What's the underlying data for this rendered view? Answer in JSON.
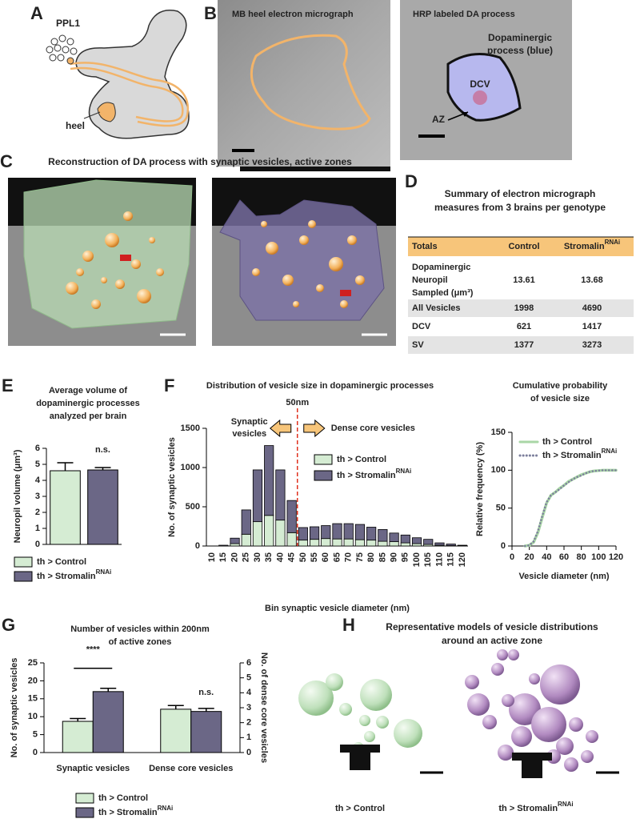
{
  "panel_labels": [
    "A",
    "B",
    "C",
    "D",
    "E",
    "F",
    "G",
    "H"
  ],
  "panel_a": {
    "cluster_label": "PPL1",
    "heel_label": "heel"
  },
  "panel_b": {
    "left_title": "MB heel electron micrograph",
    "right_title": "HRP labeled DA process",
    "process_label": [
      "Dopaminergic",
      "process (blue)"
    ],
    "dcv_label": "DCV",
    "az_label": "AZ"
  },
  "panel_c": {
    "title": "Reconstruction of DA process with synaptic vesicles, active zones"
  },
  "panel_d": {
    "title": [
      "Summary of electron micrograph",
      "measures from 3 brains per genotype"
    ],
    "header": [
      "Totals",
      "Control",
      "Stromalin"
    ],
    "header_superscript": "RNAi",
    "rows": [
      [
        [
          "Dopaminergic",
          "Neuropil",
          "Sampled (μm³)"
        ],
        "13.61",
        "13.68"
      ],
      [
        "All Vesicles",
        "1998",
        "4690"
      ],
      [
        "DCV",
        "621",
        "1417"
      ],
      [
        "SV",
        "1377",
        "3273"
      ]
    ]
  },
  "panel_h": {
    "title": [
      "Representative models of vesicle distributions",
      "around an active zone"
    ],
    "labels": [
      "th > Control",
      "th > Stromalin"
    ],
    "label_superscript": "RNAi"
  },
  "chart_data": [
    {
      "type": "bar",
      "title": [
        "Average volume of",
        "dopaminergic processes",
        "analyzed per brain"
      ],
      "ylabel": "Neuropil volume (μm³)",
      "series": [
        {
          "name": "th > Control",
          "color": "#d5ecd3",
          "values": [
            4.6
          ],
          "errors": [
            0.5
          ]
        },
        {
          "name": "th > Stromalin",
          "name_superscript": "RNAi",
          "color": "#6b6786",
          "values": [
            4.65
          ],
          "errors": [
            0.15
          ]
        }
      ],
      "ylim": [
        0,
        6
      ],
      "yticks": [
        0,
        1,
        2,
        3,
        4,
        5,
        6
      ],
      "annotations": [
        "n.s."
      ]
    },
    {
      "type": "stacked_bar",
      "title": "Distribution of vesicle size in dopaminergic processes",
      "xlabel": "Bin synaptic vesicle diameter (nm)",
      "ylabel": "No. of  synaptic vesicles",
      "categories": [
        "10",
        "15",
        "20",
        "25",
        "30",
        "35",
        "40",
        "45",
        "50",
        "55",
        "60",
        "65",
        "70",
        "75",
        "80",
        "85",
        "90",
        "95",
        "100",
        "105",
        "110",
        "115",
        "120"
      ],
      "series": [
        {
          "name": "th > Control",
          "color": "#d5ecd3",
          "values": [
            0,
            0,
            30,
            150,
            310,
            390,
            330,
            170,
            75,
            85,
            95,
            90,
            90,
            80,
            75,
            60,
            55,
            40,
            30,
            20,
            10,
            5,
            5
          ]
        },
        {
          "name": "th > Stromalin",
          "name_superscript": "RNAi",
          "color": "#6b6786",
          "values": [
            0,
            10,
            70,
            310,
            660,
            890,
            640,
            410,
            160,
            160,
            165,
            195,
            195,
            195,
            165,
            150,
            110,
            100,
            75,
            65,
            30,
            20,
            5
          ]
        }
      ],
      "ylim": [
        0,
        1500
      ],
      "yticks": [
        0,
        500,
        1000,
        1500
      ],
      "threshold": {
        "value": 50,
        "label": "50nm"
      },
      "left_label": [
        "Synaptic",
        "vesicles"
      ],
      "right_label": "Dense core vesicles"
    },
    {
      "type": "line",
      "title": [
        "Cumulative probability",
        "of vesicle size"
      ],
      "xlabel": "Vesicle diameter (nm)",
      "ylabel": "Relative frequency (%)",
      "x": [
        15,
        20,
        25,
        30,
        35,
        40,
        45,
        50,
        55,
        60,
        65,
        70,
        75,
        80,
        85,
        90,
        95,
        100,
        105,
        110,
        115,
        120
      ],
      "series": [
        {
          "name": "th > Control",
          "color": "#a9d6a6",
          "style": "solid",
          "values": [
            0,
            1,
            5,
            18,
            38,
            57,
            67,
            71,
            76,
            80,
            85,
            88,
            91,
            94,
            96,
            98,
            99,
            99.5,
            100,
            100,
            100,
            100
          ]
        },
        {
          "name": "th > Stromalin",
          "name_superscript": "RNAi",
          "color": "#7c7f9c",
          "style": "dotted",
          "values": [
            0,
            1,
            6,
            20,
            40,
            58,
            67,
            71,
            75,
            80,
            84,
            88,
            91,
            93,
            96,
            98,
            99,
            99.5,
            100,
            100,
            100,
            100
          ]
        }
      ],
      "xlim": [
        0,
        120
      ],
      "xticks": [
        0,
        20,
        40,
        60,
        80,
        100,
        120
      ],
      "ylim": [
        0,
        150
      ],
      "yticks": [
        0,
        50,
        100,
        150
      ]
    },
    {
      "type": "grouped_bar",
      "title": [
        "Number of vesicles within 200nm",
        "of active zones"
      ],
      "ylabel": "No. of synaptic vesicles",
      "y2label": "No. of dense core vesicles",
      "categories": [
        "Synaptic vesicles",
        "Dense core vesicles"
      ],
      "category_axes": [
        "y",
        "y2"
      ],
      "series": [
        {
          "name": "th > Control",
          "color": "#d5ecd3",
          "values": [
            8.7,
            2.9
          ],
          "errors": [
            0.8,
            0.25
          ]
        },
        {
          "name": "th > Stromalin",
          "name_superscript": "RNAi",
          "color": "#6b6786",
          "values": [
            17,
            2.75
          ],
          "errors": [
            0.9,
            0.2
          ]
        }
      ],
      "ylim": [
        0,
        25
      ],
      "yticks": [
        0,
        5,
        10,
        15,
        20,
        25
      ],
      "y2lim": [
        0,
        6
      ],
      "y2ticks": [
        0,
        1,
        2,
        3,
        4,
        5,
        6
      ],
      "annotations": [
        "****",
        "n.s."
      ]
    }
  ]
}
